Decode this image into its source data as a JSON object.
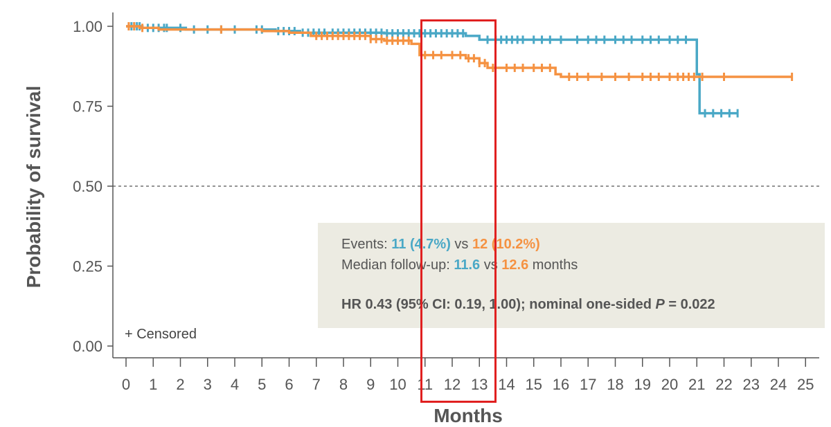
{
  "colors": {
    "arm_a": "#4aa8c6",
    "arm_b": "#f59242",
    "highlight": "#e02020",
    "annotation_bg": "#ecebe2",
    "axis": "#555555"
  },
  "chart_data": {
    "type": "line",
    "step": true,
    "xlabel": "Months",
    "ylabel": "Probability of survival",
    "xlim": [
      0,
      25
    ],
    "ylim": [
      0,
      1
    ],
    "x_ticks": [
      0,
      1,
      2,
      3,
      4,
      5,
      6,
      7,
      8,
      9,
      10,
      11,
      12,
      13,
      14,
      15,
      16,
      17,
      18,
      19,
      20,
      21,
      22,
      23,
      24,
      25
    ],
    "x_tick_labels": [
      "0",
      "1",
      "2",
      "3",
      "4",
      "5",
      "6",
      "7",
      "8",
      "9",
      "10",
      "11",
      "12",
      "13",
      "14",
      "15",
      "16",
      "17",
      "18",
      "19",
      "20",
      "21",
      "22",
      "23",
      "24",
      "25"
    ],
    "y_ticks": [
      0,
      0.25,
      0.5,
      0.75,
      1.0
    ],
    "y_tick_labels": [
      "0.00",
      "0.25",
      "0.50",
      "0.75",
      "1.00"
    ],
    "reference_line": 0.5,
    "series": [
      {
        "color": "#4aa8c6",
        "steps": [
          [
            0,
            1.0
          ],
          [
            0.6,
            0.995
          ],
          [
            2.2,
            0.99
          ],
          [
            5.5,
            0.985
          ],
          [
            6.4,
            0.98
          ],
          [
            9.5,
            0.978
          ],
          [
            12.5,
            0.97
          ],
          [
            13.0,
            0.958
          ],
          [
            21.0,
            0.85
          ],
          [
            21.1,
            0.728
          ],
          [
            22.5,
            0.728
          ]
        ],
        "censored": [
          0.1,
          0.2,
          0.3,
          0.4,
          0.5,
          0.8,
          1.0,
          1.2,
          1.4,
          1.5,
          2.0,
          2.5,
          3.0,
          3.5,
          4.0,
          4.8,
          5.0,
          5.6,
          5.8,
          6.0,
          6.2,
          6.5,
          6.7,
          6.9,
          7.1,
          7.3,
          7.6,
          7.8,
          8.0,
          8.2,
          8.4,
          8.6,
          8.8,
          9.0,
          9.2,
          9.4,
          9.6,
          9.8,
          10.0,
          10.2,
          10.4,
          10.6,
          10.8,
          11.0,
          11.2,
          11.4,
          11.6,
          11.8,
          12.0,
          12.2,
          12.4,
          13.3,
          13.6,
          13.8,
          14.0,
          14.2,
          14.4,
          14.6,
          15.0,
          15.3,
          15.6,
          16.0,
          16.6,
          17.0,
          17.3,
          17.6,
          18.0,
          18.3,
          18.6,
          19.0,
          19.3,
          19.6,
          20.0,
          20.3,
          20.6,
          21.3,
          21.6,
          21.9,
          22.2,
          22.5
        ]
      },
      {
        "color": "#f59242",
        "steps": [
          [
            0,
            1.0
          ],
          [
            0.5,
            0.995
          ],
          [
            1.2,
            0.99
          ],
          [
            5.0,
            0.985
          ],
          [
            6.0,
            0.98
          ],
          [
            6.8,
            0.97
          ],
          [
            9.0,
            0.96
          ],
          [
            9.5,
            0.955
          ],
          [
            10.5,
            0.945
          ],
          [
            10.8,
            0.91
          ],
          [
            12.5,
            0.9
          ],
          [
            13.0,
            0.885
          ],
          [
            13.3,
            0.87
          ],
          [
            15.8,
            0.85
          ],
          [
            16.0,
            0.842
          ],
          [
            24.5,
            0.842
          ]
        ],
        "censored": [
          0.1,
          0.3,
          0.6,
          3.5,
          7.0,
          7.2,
          7.4,
          7.6,
          7.8,
          8.0,
          8.2,
          8.4,
          8.6,
          8.8,
          9.0,
          9.2,
          9.4,
          9.6,
          9.8,
          10.0,
          10.2,
          10.4,
          11.0,
          11.3,
          11.6,
          12.0,
          12.3,
          12.6,
          12.8,
          13.0,
          13.2,
          13.5,
          14.0,
          14.3,
          14.6,
          15.0,
          15.3,
          15.6,
          16.3,
          16.6,
          17.0,
          17.5,
          18.0,
          18.5,
          19.0,
          19.3,
          19.6,
          20.0,
          20.3,
          20.5,
          20.7,
          20.9,
          21.2,
          22.0,
          24.5
        ]
      }
    ]
  },
  "annotation": {
    "events_label": "Events: ",
    "events_a": "11 (4.7%)",
    "vs1": " vs ",
    "events_b": "12 (10.2%)",
    "followup_label": "Median follow-up: ",
    "followup_a": "11.6",
    "vs2": " vs ",
    "followup_b": "12.6",
    "followup_unit": " months",
    "hr_text": "HR 0.43 (95% CI: 0.19, 1.00); nominal one-sided ",
    "p_symbol": "P",
    "p_value": " = 0.022"
  },
  "censor_note": "+ Censored"
}
